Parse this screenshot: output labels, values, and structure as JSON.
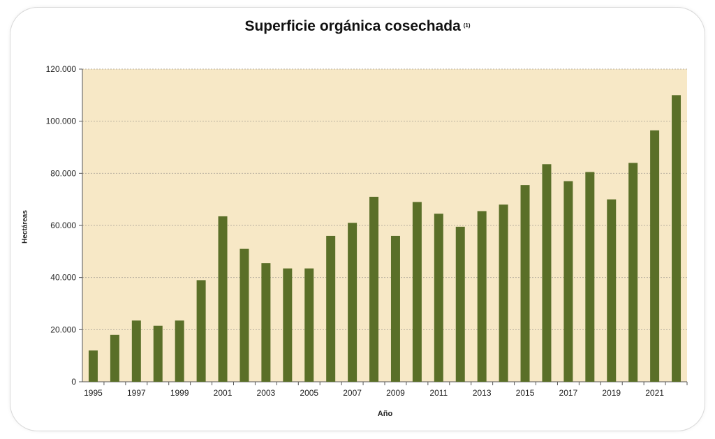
{
  "chart_data": {
    "type": "bar",
    "title": "Superficie orgánica cosechada",
    "title_note": "(1)",
    "xlabel": "Año",
    "ylabel": "Hectáreas",
    "ylim": [
      0,
      120000
    ],
    "yticks": [
      "0",
      "20.000",
      "40.000",
      "60.000",
      "80.000",
      "100.000",
      "120.000"
    ],
    "categories": [
      "1995",
      "1996",
      "1997",
      "1998",
      "1999",
      "2000",
      "2001",
      "2002",
      "2003",
      "2004",
      "2005",
      "2006",
      "2007",
      "2008",
      "2009",
      "2010",
      "2011",
      "2012",
      "2013",
      "2014",
      "2015",
      "2016",
      "2017",
      "2018",
      "2019",
      "2020",
      "2021",
      "2022"
    ],
    "xtick_labels": [
      "1995",
      "1997",
      "1999",
      "2001",
      "2003",
      "2005",
      "2007",
      "2009",
      "2011",
      "2013",
      "2015",
      "2017",
      "2019",
      "2021"
    ],
    "values": [
      12000,
      18000,
      23500,
      21500,
      23500,
      39000,
      63500,
      51000,
      45500,
      43500,
      43500,
      56000,
      61000,
      71000,
      56000,
      69000,
      64500,
      59500,
      65500,
      68000,
      75500,
      83500,
      77000,
      80500,
      70000,
      84000,
      96500,
      110000
    ],
    "colors": {
      "bar": "#5a6f28",
      "plot_bg": "#f7e8c6",
      "grid": "#b8b0a0",
      "axis": "#555555"
    },
    "grid": true,
    "legend": "none"
  }
}
